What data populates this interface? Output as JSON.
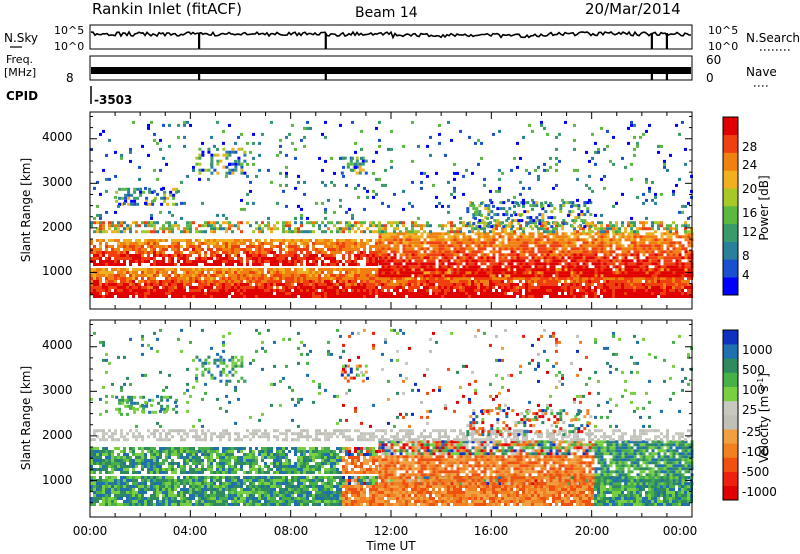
{
  "header": {
    "title": "Rankin Inlet (fitACF)",
    "beam": "Beam 14",
    "date": "20/Mar/2014"
  },
  "top_panels": {
    "nsky_label": "N.Sky",
    "nsky_ticks": [
      "10^5",
      "10^0"
    ],
    "nsearch_label": "N.Search",
    "freq_label": "Freq.",
    "freq_unit": "[MHz]",
    "freq_ticks": [
      "8"
    ],
    "nave_ticks": [
      "60",
      "0"
    ],
    "nave_label": "Nave",
    "cpid_label": "CPID",
    "cpid_value": "-3503"
  },
  "chart_data": [
    {
      "type": "heatmap",
      "name": "power",
      "ylabel": "Slant Range [km]",
      "xlabel": "",
      "ylim": [
        180,
        4600
      ],
      "xlim": [
        0,
        24
      ],
      "yticks": [
        "1000",
        "2000",
        "3000",
        "4000"
      ],
      "colorbar": {
        "label": "Power [dB]",
        "ticks": [
          "4",
          "8",
          "12",
          "16",
          "20",
          "24",
          "28"
        ],
        "range": [
          0,
          30
        ],
        "colors": [
          "#0000ff",
          "#1a4fd0",
          "#2a7f9a",
          "#3a9a6a",
          "#5cb840",
          "#a8c828",
          "#f0b020",
          "#f08010",
          "#f04010",
          "#e00000"
        ]
      }
    },
    {
      "type": "heatmap",
      "name": "velocity",
      "ylabel": "Slant Range [km]",
      "xlabel": "Time UT",
      "ylim": [
        180,
        4600
      ],
      "xlim": [
        0,
        24
      ],
      "yticks": [
        "1000",
        "2000",
        "3000",
        "4000"
      ],
      "xticks": [
        "00:00",
        "04:00",
        "08:00",
        "12:00",
        "16:00",
        "20:00",
        "00:00"
      ],
      "colorbar": {
        "label": "Velocity [m s",
        "label_sup": "-1",
        "label_end": "]",
        "ticks": [
          "1000",
          "500",
          "100",
          "25",
          "-25",
          "-100",
          "-500",
          "-1000"
        ],
        "colors": [
          "#1030c0",
          "#2070b0",
          "#308a60",
          "#48b048",
          "#78d040",
          "#c8c8c0",
          "#c0c0b8",
          "#f0a040",
          "#f08020",
          "#f05010",
          "#f02010",
          "#e00000"
        ]
      }
    }
  ]
}
